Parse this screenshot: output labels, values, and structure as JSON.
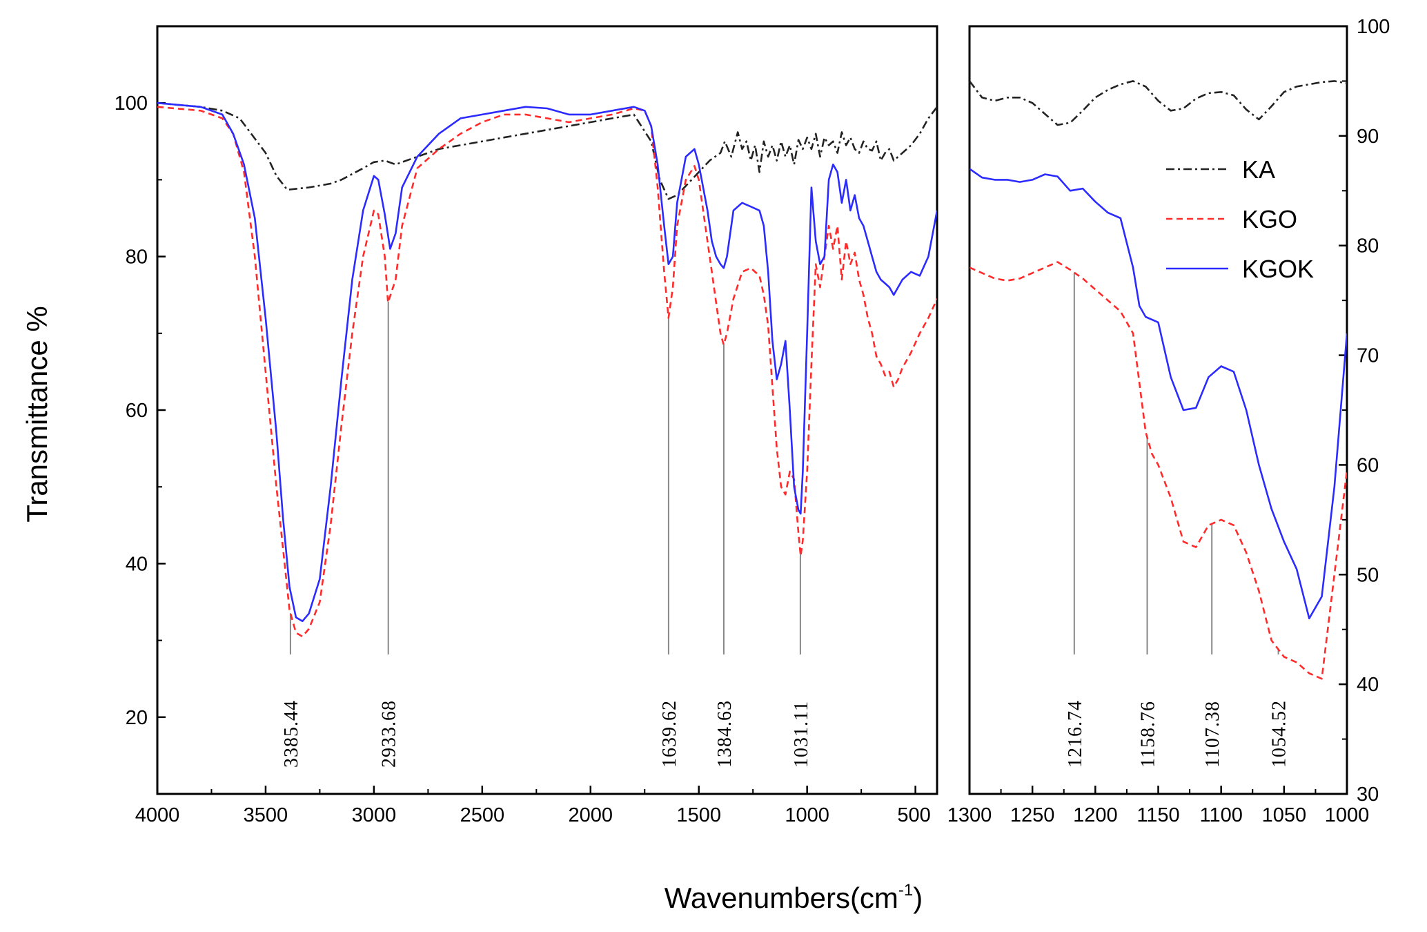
{
  "colors": {
    "KA": "#222222",
    "KGO": "#ff2a2a",
    "KGOK": "#2b2bff",
    "peak_line": "#888888",
    "frame": "#000000"
  },
  "chart_data": [
    {
      "type": "line",
      "panel": "left",
      "xlabel": "Wavenumbers(cm",
      "xlabel_sup": "-1",
      "xlabel_end": ")",
      "ylabel": "Transmittance %",
      "xlim": [
        4000,
        400
      ],
      "ylim": [
        10,
        110
      ],
      "xticks": [
        4000,
        3500,
        3000,
        2500,
        2000,
        1500,
        1000,
        500
      ],
      "yticks": [
        20,
        40,
        60,
        80,
        100
      ],
      "series": [
        {
          "name": "KA",
          "style": "dashdot",
          "x": [
            4000,
            3800,
            3700,
            3620,
            3500,
            3450,
            3400,
            3300,
            3200,
            3150,
            3050,
            3000,
            2950,
            2900,
            2800,
            2700,
            2500,
            2400,
            2300,
            2200,
            2100,
            2000,
            1900,
            1800,
            1720,
            1680,
            1640,
            1600,
            1550,
            1500,
            1450,
            1400,
            1380,
            1350,
            1320,
            1300,
            1280,
            1260,
            1240,
            1220,
            1200,
            1180,
            1160,
            1140,
            1120,
            1100,
            1080,
            1060,
            1040,
            1020,
            1000,
            980,
            960,
            940,
            920,
            900,
            880,
            860,
            840,
            820,
            800,
            780,
            760,
            740,
            720,
            700,
            680,
            660,
            640,
            620,
            600,
            560,
            520,
            480,
            440,
            400
          ],
          "y": [
            100,
            99.5,
            99,
            98,
            93.5,
            90.5,
            88.7,
            89,
            89.5,
            90,
            91.5,
            92.3,
            92.5,
            92,
            93,
            94,
            95,
            95.5,
            96,
            96.5,
            97,
            97.5,
            98,
            98.5,
            95,
            90,
            87.5,
            88,
            89.5,
            91,
            92.5,
            93.5,
            95,
            93,
            96.2,
            94,
            95,
            92.5,
            94.5,
            91,
            95,
            93,
            94.5,
            92.5,
            95,
            93,
            94.5,
            92,
            95.2,
            94,
            95.5,
            94,
            96,
            93,
            95.5,
            94.5,
            95,
            93.5,
            96.2,
            94.5,
            95.5,
            94,
            93.5,
            95,
            94,
            93.8,
            95,
            92.5,
            93.5,
            94,
            92.5,
            93.5,
            94.5,
            96,
            98,
            99.5
          ]
        },
        {
          "name": "KGO",
          "style": "dashed",
          "x": [
            4000,
            3800,
            3700,
            3650,
            3600,
            3550,
            3500,
            3450,
            3420,
            3390,
            3360,
            3330,
            3300,
            3250,
            3200,
            3150,
            3100,
            3050,
            3000,
            2980,
            2950,
            2935,
            2900,
            2870,
            2800,
            2700,
            2600,
            2500,
            2400,
            2300,
            2200,
            2100,
            2000,
            1900,
            1800,
            1750,
            1720,
            1690,
            1660,
            1640,
            1620,
            1600,
            1560,
            1520,
            1500,
            1480,
            1460,
            1440,
            1420,
            1400,
            1385,
            1370,
            1340,
            1300,
            1260,
            1220,
            1200,
            1180,
            1160,
            1140,
            1120,
            1100,
            1080,
            1060,
            1040,
            1030,
            1020,
            1000,
            980,
            960,
            940,
            920,
            900,
            880,
            860,
            840,
            820,
            800,
            780,
            760,
            740,
            720,
            700,
            680,
            660,
            640,
            620,
            600,
            580,
            560,
            520,
            480,
            440,
            400
          ],
          "y": [
            99.5,
            99,
            98,
            96,
            91,
            80,
            65,
            50,
            42,
            34,
            31,
            30.5,
            31.5,
            35,
            45,
            58,
            70,
            80,
            86,
            85.5,
            80,
            74,
            77,
            84,
            91.5,
            94,
            96,
            97.5,
            98.5,
            98.5,
            98,
            97.5,
            98,
            98.5,
            99.3,
            99,
            97,
            89,
            78,
            72,
            76,
            84,
            90,
            91.8,
            90,
            86,
            82,
            78,
            74,
            70,
            68.5,
            70,
            74.5,
            78,
            78.5,
            77.5,
            75,
            71,
            63,
            55,
            50,
            49,
            52,
            51,
            44,
            41,
            43,
            52,
            66,
            79,
            76,
            80,
            84,
            81,
            84,
            77,
            82,
            79,
            80.5,
            77,
            75,
            72,
            70,
            67,
            66,
            64.5,
            65,
            63,
            64,
            65.5,
            67.5,
            70,
            72,
            74.5
          ]
        },
        {
          "name": "KGOK",
          "style": "solid",
          "x": [
            4000,
            3800,
            3700,
            3650,
            3600,
            3550,
            3500,
            3450,
            3420,
            3390,
            3360,
            3330,
            3300,
            3250,
            3200,
            3150,
            3100,
            3050,
            3000,
            2980,
            2950,
            2925,
            2900,
            2870,
            2800,
            2700,
            2600,
            2500,
            2400,
            2300,
            2200,
            2100,
            2000,
            1900,
            1800,
            1750,
            1720,
            1690,
            1660,
            1640,
            1620,
            1600,
            1560,
            1520,
            1500,
            1480,
            1460,
            1440,
            1420,
            1400,
            1385,
            1370,
            1340,
            1300,
            1260,
            1220,
            1200,
            1180,
            1160,
            1140,
            1120,
            1100,
            1080,
            1060,
            1040,
            1030,
            1020,
            1000,
            980,
            960,
            940,
            920,
            900,
            880,
            860,
            840,
            820,
            800,
            780,
            760,
            740,
            720,
            700,
            680,
            660,
            640,
            620,
            600,
            580,
            560,
            520,
            480,
            440,
            400
          ],
          "y": [
            100,
            99.5,
            98.5,
            96,
            92,
            85,
            72,
            57,
            46,
            37,
            33,
            32.5,
            33.5,
            38,
            50,
            64,
            77,
            86,
            90.5,
            90,
            85.5,
            81,
            83,
            89,
            93,
            96,
            98,
            98.5,
            99,
            99.5,
            99.3,
            98.5,
            98.5,
            99,
            99.5,
            99,
            97,
            92,
            84,
            79,
            80,
            87,
            93,
            94,
            92,
            89,
            86,
            82,
            80,
            79,
            78.5,
            80,
            86,
            87,
            86.5,
            86,
            84,
            78,
            69,
            64,
            66,
            69,
            60,
            50,
            47,
            46.5,
            52,
            70,
            89,
            82,
            79,
            80,
            90,
            92,
            91,
            87,
            90,
            86,
            88,
            85,
            84,
            82,
            80,
            78,
            77,
            76.5,
            76,
            75,
            76,
            77,
            78,
            77.5,
            80,
            86
          ]
        }
      ],
      "peak_labels": [
        {
          "x": 3385.44,
          "label": "3385.44"
        },
        {
          "x": 2933.68,
          "label": "2933.68"
        },
        {
          "x": 1639.62,
          "label": "1639.62"
        },
        {
          "x": 1384.63,
          "label": "1384.63"
        },
        {
          "x": 1031.11,
          "label": "1031.11"
        }
      ]
    },
    {
      "type": "line",
      "panel": "right",
      "xlim": [
        1300,
        1000
      ],
      "ylim": [
        30,
        100
      ],
      "xticks": [
        1300,
        1250,
        1200,
        1150,
        1100,
        1050,
        1000
      ],
      "yticks": [
        30,
        40,
        50,
        60,
        70,
        80,
        90,
        100
      ],
      "series": [
        {
          "name": "KA",
          "style": "dashdot",
          "x": [
            1300,
            1290,
            1280,
            1270,
            1260,
            1250,
            1240,
            1230,
            1220,
            1210,
            1200,
            1190,
            1180,
            1170,
            1160,
            1150,
            1140,
            1130,
            1120,
            1110,
            1100,
            1090,
            1080,
            1070,
            1060,
            1050,
            1040,
            1030,
            1020,
            1010,
            1000
          ],
          "y": [
            95,
            93.5,
            93.2,
            93.5,
            93.5,
            93,
            92,
            91,
            91.2,
            92.3,
            93.5,
            94.2,
            94.7,
            95,
            94.5,
            93.2,
            92.3,
            92.5,
            93.4,
            93.9,
            94,
            93.7,
            92.4,
            91.5,
            92.7,
            94,
            94.5,
            94.7,
            94.9,
            95,
            94.8
          ]
        },
        {
          "name": "KGO",
          "style": "dashed",
          "x": [
            1300,
            1290,
            1280,
            1270,
            1260,
            1250,
            1240,
            1230,
            1220,
            1210,
            1200,
            1190,
            1180,
            1170,
            1160,
            1155,
            1150,
            1140,
            1130,
            1120,
            1110,
            1100,
            1090,
            1080,
            1070,
            1060,
            1050,
            1040,
            1030,
            1020,
            1010,
            1000
          ],
          "y": [
            78,
            77.5,
            77,
            76.8,
            77,
            77.5,
            78,
            78.5,
            77.8,
            77,
            76,
            75,
            74,
            72,
            63,
            61,
            60,
            57,
            53,
            52.5,
            54.5,
            55,
            54.5,
            52,
            48.5,
            44,
            42.5,
            42,
            41,
            40.5,
            50,
            59.5
          ]
        },
        {
          "name": "KGOK",
          "style": "solid",
          "x": [
            1300,
            1290,
            1280,
            1270,
            1260,
            1250,
            1240,
            1230,
            1220,
            1210,
            1200,
            1190,
            1180,
            1170,
            1165,
            1160,
            1150,
            1140,
            1130,
            1120,
            1110,
            1100,
            1090,
            1080,
            1070,
            1060,
            1050,
            1040,
            1030,
            1020,
            1010,
            1000
          ],
          "y": [
            87,
            86.2,
            86,
            86,
            85.8,
            86,
            86.5,
            86.3,
            85,
            85.2,
            84,
            83,
            82.5,
            78,
            74.5,
            73.5,
            73,
            68,
            65,
            65.2,
            68,
            69,
            68.5,
            65,
            60,
            56,
            53,
            50.5,
            46,
            48,
            58,
            72
          ]
        }
      ],
      "peak_labels": [
        {
          "x": 1216.74,
          "label": "1216.74"
        },
        {
          "x": 1158.76,
          "label": "1158.76"
        },
        {
          "x": 1107.38,
          "label": "1107.38"
        },
        {
          "x": 1054.52,
          "label": "1054.52"
        }
      ],
      "legend": {
        "position": "top-right",
        "entries": [
          "KA",
          "KGO",
          "KGOK"
        ]
      }
    }
  ]
}
